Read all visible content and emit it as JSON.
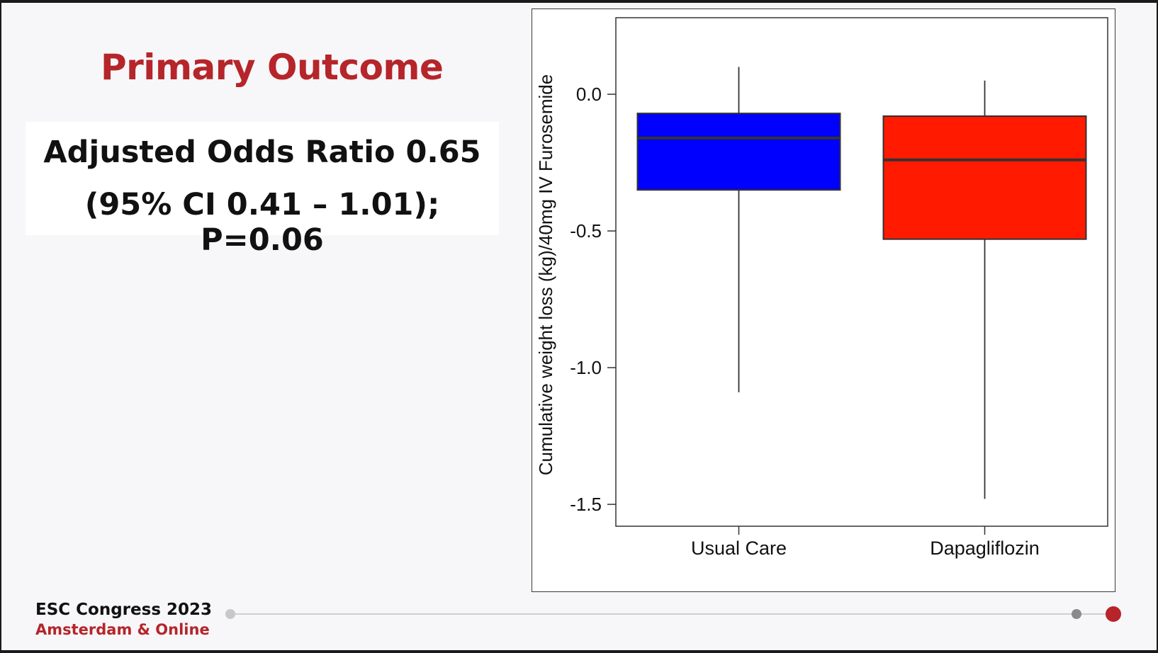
{
  "slide": {
    "title": "Primary Outcome",
    "stat_line_1": "Adjusted Odds Ratio 0.65",
    "stat_line_2": "(95% CI 0.41 – 1.01); P=0.06"
  },
  "footer": {
    "event": "ESC Congress 2023",
    "location": "Amsterdam & Online"
  },
  "colors": {
    "title_red": "#b5252a",
    "usual_care_box": "#0000ff",
    "dapagliflozin_box": "#ff1a00"
  },
  "chart_data": {
    "type": "boxplot",
    "title": "",
    "ylabel": "Cumulative weight loss (kg)/40mg IV Furosemide",
    "xlabel": "",
    "ylim": [
      -1.58,
      0.28
    ],
    "yticks": [
      0.0,
      -0.5,
      -1.0,
      -1.5
    ],
    "ytick_labels": [
      "0.0",
      "-0.5",
      "-1.0",
      "-1.5"
    ],
    "grid": false,
    "categories": [
      "Usual Care",
      "Dapagliflozin"
    ],
    "boxes": [
      {
        "name": "Usual Care",
        "whisker_high": 0.1,
        "q3": -0.07,
        "median": -0.16,
        "q1": -0.35,
        "whisker_low": -1.09,
        "color": "#0000ff"
      },
      {
        "name": "Dapagliflozin",
        "whisker_high": 0.05,
        "q3": -0.08,
        "median": -0.24,
        "q1": -0.53,
        "whisker_low": -1.48,
        "color": "#ff1a00"
      }
    ]
  }
}
